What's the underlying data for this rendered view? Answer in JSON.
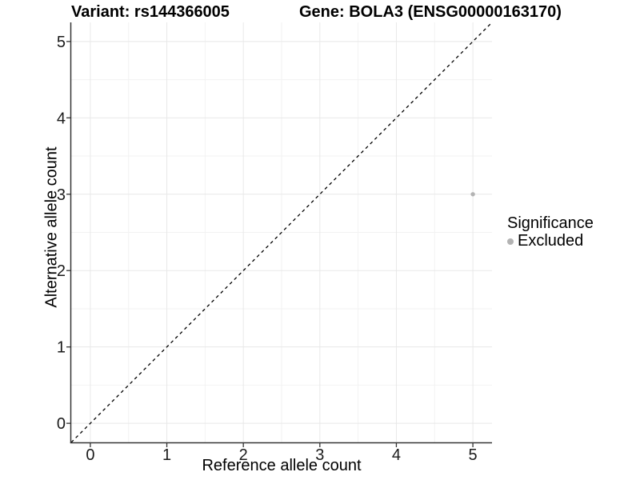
{
  "title": {
    "left": "Variant: rs144366005",
    "right": "Gene: BOLA3 (ENSG00000163170)"
  },
  "axes": {
    "x_label": "Reference allele count",
    "y_label": "Alternative allele count"
  },
  "legend": {
    "title": "Significance",
    "items": [
      {
        "label": "Excluded",
        "color": "#b3b3b3"
      }
    ]
  },
  "chart_data": {
    "type": "scatter",
    "title": "Variant: rs144366005    Gene: BOLA3 (ENSG00000163170)",
    "xlabel": "Reference allele count",
    "ylabel": "Alternative allele count",
    "xlim": [
      -0.25,
      5.25
    ],
    "ylim": [
      -0.25,
      5.25
    ],
    "xticks": [
      0,
      1,
      2,
      3,
      4,
      5
    ],
    "yticks": [
      0,
      1,
      2,
      3,
      4,
      5
    ],
    "minor_gridlines": [
      0.5,
      1.5,
      2.5,
      3.5,
      4.5
    ],
    "grid": true,
    "series": [
      {
        "name": "Excluded",
        "color": "#b3b3b3",
        "points": [
          {
            "x": 5,
            "y": 3
          }
        ]
      }
    ],
    "reference_line": {
      "type": "identity y=x",
      "style": "dashed",
      "color": "#000000"
    },
    "legend_position": "right"
  },
  "colors": {
    "background": "#ffffff",
    "grid_major": "#e8e8e8",
    "grid_minor": "#f2f2f2",
    "axis_line": "#333333",
    "tick_text": "#1a1a1a",
    "point": "#b3b3b3",
    "ref_line": "#000000"
  }
}
